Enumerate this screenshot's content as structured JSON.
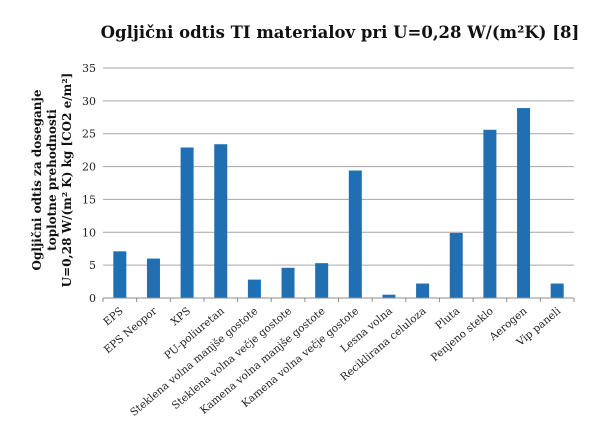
{
  "chart_data": {
    "type": "bar",
    "title": "Ogljični odtis TI materialov pri U=0,28 W/(m²K) [8]",
    "ylabel_lines": [
      "Ogljični odtis za doseganje",
      "toplotne prehodnosti",
      "U=0,28 W/(m² K) kg [CO2 e/m²]"
    ],
    "xlabel": "",
    "categories": [
      "EPS",
      "EPS Neopor",
      "XPS",
      "PU-poliuretan",
      "Steklena volna manjše gostote",
      "Steklena volna večje gostote",
      "Kamena volna manjše gostote",
      "Kamena volna večje gostote",
      "Lesna volna",
      "Reciklirana celuloza",
      "Pluta",
      "Penjeno steklo",
      "Aerogen",
      "Vip paneli"
    ],
    "values": [
      7.1,
      6.0,
      22.9,
      23.4,
      2.8,
      4.6,
      5.3,
      19.4,
      0.5,
      2.2,
      9.9,
      25.6,
      28.9,
      2.2
    ],
    "ylim": [
      0,
      35
    ],
    "yticks": [
      0,
      5,
      10,
      15,
      20,
      25,
      30,
      35
    ],
    "bar_color": "#1f6fb2",
    "grid": true,
    "legend": "none"
  }
}
